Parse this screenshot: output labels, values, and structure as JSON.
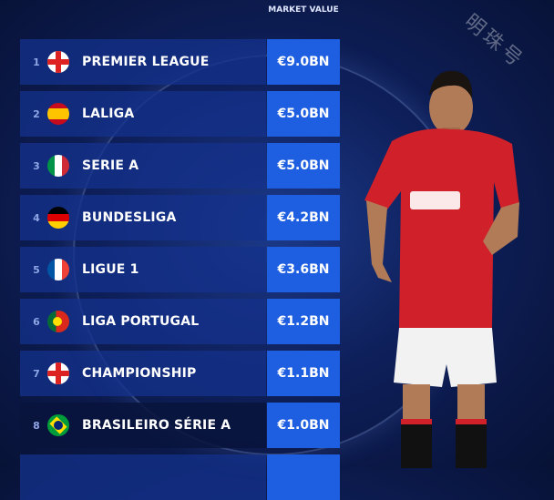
{
  "header": {
    "market_value_label": "MARKET VALUE"
  },
  "watermark": "明珠号",
  "rows": [
    {
      "rank": "1",
      "league": "PREMIER LEAGUE",
      "value": "€9.0BN",
      "flag": "england"
    },
    {
      "rank": "2",
      "league": "LALIGA",
      "value": "€5.0BN",
      "flag": "spain"
    },
    {
      "rank": "3",
      "league": "SERIE A",
      "value": "€5.0BN",
      "flag": "italy"
    },
    {
      "rank": "4",
      "league": "BUNDESLIGA",
      "value": "€4.2BN",
      "flag": "germany"
    },
    {
      "rank": "5",
      "league": "LIGUE 1",
      "value": "€3.6BN",
      "flag": "france"
    },
    {
      "rank": "6",
      "league": "LIGA PORTUGAL",
      "value": "€1.2BN",
      "flag": "portugal"
    },
    {
      "rank": "7",
      "league": "CHAMPIONSHIP",
      "value": "€1.1BN",
      "flag": "england"
    },
    {
      "rank": "8",
      "league": "BRASILEIRO SÉRIE A",
      "value": "€1.0BN",
      "flag": "brazil"
    }
  ],
  "colors": {
    "value_cell": "#1e5ee0",
    "shirt": "#d0202a"
  }
}
